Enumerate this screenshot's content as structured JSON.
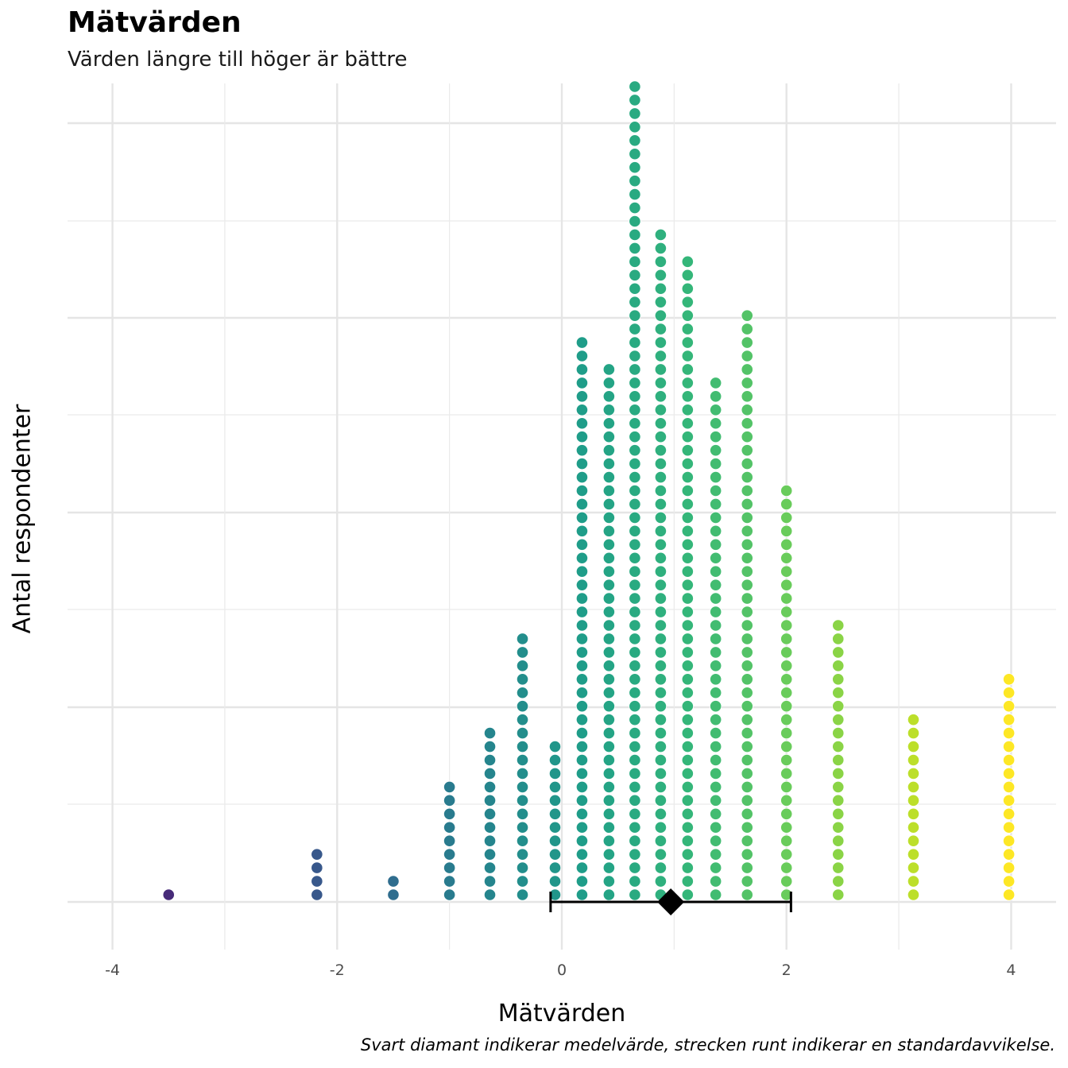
{
  "chart_data": {
    "type": "dotplot",
    "title": "Mätvärden",
    "subtitle": "Värden längre till höger är bättre",
    "xlabel": "Mätvärden",
    "ylabel": "Antal respondenter",
    "caption": "Svart diamant indikerar medelvärde, strecken runt indikerar en standardavvikelse.",
    "xlim": [
      -4.4,
      4.4
    ],
    "x_ticks": [
      "-4",
      "-2",
      "0",
      "2",
      "4"
    ],
    "x_tick_values": [
      -4,
      -2,
      0,
      2,
      4
    ],
    "y_tick_labels_shown": false,
    "grid": true,
    "colormap": "viridis",
    "bins": [
      {
        "x": -3.5,
        "count": 1
      },
      {
        "x": -2.18,
        "count": 4
      },
      {
        "x": -1.5,
        "count": 2
      },
      {
        "x": -1.0,
        "count": 9
      },
      {
        "x": -0.64,
        "count": 13
      },
      {
        "x": -0.35,
        "count": 20
      },
      {
        "x": -0.06,
        "count": 12
      },
      {
        "x": 0.18,
        "count": 42
      },
      {
        "x": 0.42,
        "count": 40
      },
      {
        "x": 0.65,
        "count": 61
      },
      {
        "x": 0.88,
        "count": 50
      },
      {
        "x": 1.12,
        "count": 48
      },
      {
        "x": 1.37,
        "count": 39
      },
      {
        "x": 1.65,
        "count": 44
      },
      {
        "x": 2.0,
        "count": 31
      },
      {
        "x": 2.46,
        "count": 21
      },
      {
        "x": 3.13,
        "count": 14
      },
      {
        "x": 3.98,
        "count": 17
      }
    ],
    "mean": 0.97,
    "sd_interval": [
      -0.1,
      2.04
    ]
  }
}
